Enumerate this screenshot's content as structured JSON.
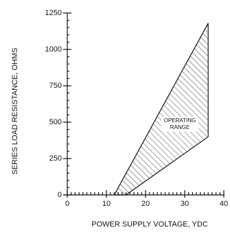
{
  "chart_data": {
    "type": "area",
    "x_label": "POWER SUPPLY VOLTAGE, YDC",
    "y_label": "SERIES LOAD RESISTANCE, OHMS",
    "annotation": [
      "OPERATING",
      "RANGE"
    ],
    "x": [
      12,
      15,
      36,
      36
    ],
    "values": [
      0,
      0,
      400,
      1180
    ],
    "xlim": [
      0,
      40
    ],
    "xticks": [
      0,
      10,
      20,
      30,
      40
    ],
    "ylim": [
      0,
      1250
    ],
    "yticks": [
      0,
      250,
      500,
      750,
      1000,
      1250
    ],
    "color": "#111111",
    "fill": "hatch"
  }
}
